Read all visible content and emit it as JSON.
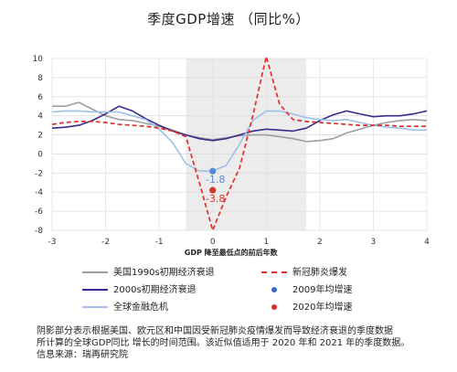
{
  "chart_data": {
    "type": "line",
    "title": "季度GDP增速 （同比%）",
    "xlabel": "GDP 降至最低点的前后年数",
    "ylabel": "",
    "xlim": [
      -3,
      4
    ],
    "ylim": [
      -8,
      10
    ],
    "xticks": [
      "-3",
      "-2",
      "-1",
      "0",
      "1",
      "2",
      "3",
      "4"
    ],
    "yticks": [
      "10",
      "8",
      "6",
      "4",
      "2",
      "0",
      "-2",
      "-4",
      "-6",
      "-8"
    ],
    "grid": true,
    "shaded_region": [
      -0.5,
      1.75
    ],
    "series": [
      {
        "name": "美国1990s初期经济衰退",
        "color": "#9e9e9e",
        "style": "solid",
        "x": [
          -3,
          -2.75,
          -2.5,
          -2.25,
          -2,
          -1.75,
          -1.5,
          -1.25,
          -1,
          -0.75,
          -0.5,
          -0.25,
          0,
          0.25,
          0.5,
          0.75,
          1,
          1.25,
          1.5,
          1.75,
          2,
          2.25,
          2.5,
          2.75,
          3,
          3.25,
          3.5,
          3.75,
          4
        ],
        "y": [
          5.0,
          5.0,
          5.4,
          4.7,
          4.0,
          3.6,
          3.5,
          3.2,
          2.9,
          2.5,
          2.0,
          1.7,
          1.5,
          1.7,
          1.9,
          2.0,
          2.0,
          1.8,
          1.6,
          1.3,
          1.4,
          1.6,
          2.2,
          2.6,
          3.0,
          3.3,
          3.5,
          3.6,
          3.5
        ]
      },
      {
        "name": "2000s初期经济衰退",
        "color": "#3b2a8c",
        "style": "solid",
        "x": [
          -3,
          -2.75,
          -2.5,
          -2.25,
          -2,
          -1.75,
          -1.5,
          -1.25,
          -1,
          -0.75,
          -0.5,
          -0.25,
          0,
          0.25,
          0.5,
          0.75,
          1,
          1.25,
          1.5,
          1.75,
          2,
          2.25,
          2.5,
          2.75,
          3,
          3.25,
          3.5,
          3.75,
          4
        ],
        "y": [
          2.7,
          2.8,
          3.0,
          3.5,
          4.2,
          5.0,
          4.5,
          3.7,
          3.0,
          2.4,
          2.0,
          1.6,
          1.4,
          1.6,
          2.0,
          2.4,
          2.6,
          2.5,
          2.4,
          2.7,
          3.5,
          4.1,
          4.5,
          4.2,
          3.9,
          4.0,
          4.0,
          4.2,
          4.5
        ]
      },
      {
        "name": "全球金融危机",
        "color": "#9ec0e6",
        "style": "solid",
        "x": [
          -3,
          -2.75,
          -2.5,
          -2.25,
          -2,
          -1.75,
          -1.5,
          -1.25,
          -1,
          -0.75,
          -0.5,
          -0.25,
          0,
          0.25,
          0.5,
          0.75,
          1,
          1.25,
          1.5,
          1.75,
          2,
          2.25,
          2.5,
          2.75,
          3,
          3.25,
          3.5,
          3.75,
          4
        ],
        "y": [
          4.4,
          4.5,
          4.5,
          4.4,
          4.4,
          4.4,
          4.0,
          3.6,
          2.6,
          1.2,
          -1.0,
          -1.8,
          -1.8,
          -1.2,
          1.0,
          3.5,
          4.5,
          4.5,
          4.2,
          3.8,
          3.6,
          3.5,
          3.6,
          3.3,
          3.0,
          2.8,
          2.7,
          2.5,
          2.5
        ]
      },
      {
        "name": "新冠肺炎爆发",
        "color": "#e0302e",
        "style": "dashed",
        "x": [
          -3,
          -2.75,
          -2.5,
          -2.25,
          -2,
          -1.75,
          -1.5,
          -1.25,
          -1,
          -0.75,
          -0.5,
          -0.25,
          0,
          0.25,
          0.5,
          0.75,
          1,
          1.25,
          1.5,
          1.75,
          2,
          2.25,
          2.5,
          2.75,
          3,
          3.25,
          3.5,
          3.75,
          4
        ],
        "y": [
          3.1,
          3.3,
          3.4,
          3.4,
          3.3,
          3.1,
          3.0,
          2.9,
          2.7,
          2.4,
          1.8,
          -3.0,
          -8.0,
          -4.5,
          -1.5,
          4.0,
          10.2,
          5.2,
          3.6,
          3.4,
          3.3,
          3.2,
          3.1,
          3.0,
          3.0,
          3.0,
          2.9,
          2.9,
          2.9
        ]
      }
    ],
    "points": [
      {
        "name": "2009年均增速",
        "x": 0,
        "y": -1.8,
        "color": "#5a88d8",
        "label": "-1.8",
        "label_color": "#5a88d8"
      },
      {
        "name": "2020年均增速",
        "x": 0,
        "y": -3.8,
        "color": "#d9342b",
        "label": "-3.8",
        "label_color": "#d9342b"
      }
    ],
    "legend": [
      {
        "label": "美国1990s初期经济衰退",
        "kind": "line",
        "color": "#9e9e9e",
        "style": "solid"
      },
      {
        "label": "新冠肺炎爆发",
        "kind": "line",
        "color": "#e0302e",
        "style": "dashed"
      },
      {
        "label": "2000s初期经济衰退",
        "kind": "line",
        "color": "#3b2a8c",
        "style": "solid"
      },
      {
        "label": "2009年均增速",
        "kind": "dot",
        "color": "#3a67c8"
      },
      {
        "label": "全球金融危机",
        "kind": "line",
        "color": "#9ec0e6",
        "style": "solid"
      },
      {
        "label": "2020年均增速",
        "kind": "dot",
        "color": "#d9342b"
      }
    ],
    "legend_position": "bottom"
  },
  "footnote": {
    "line1": "阴影部分表示根据美国、欧元区和中国因受新冠肺炎疫情爆发而导致经济衰退的季度数据",
    "line2": "所计算的全球GDP同比 增长的时间范围。该近似值适用于 2020 年和 2021 年的季度数据。",
    "line3": "信息来源：瑞再研究院"
  }
}
